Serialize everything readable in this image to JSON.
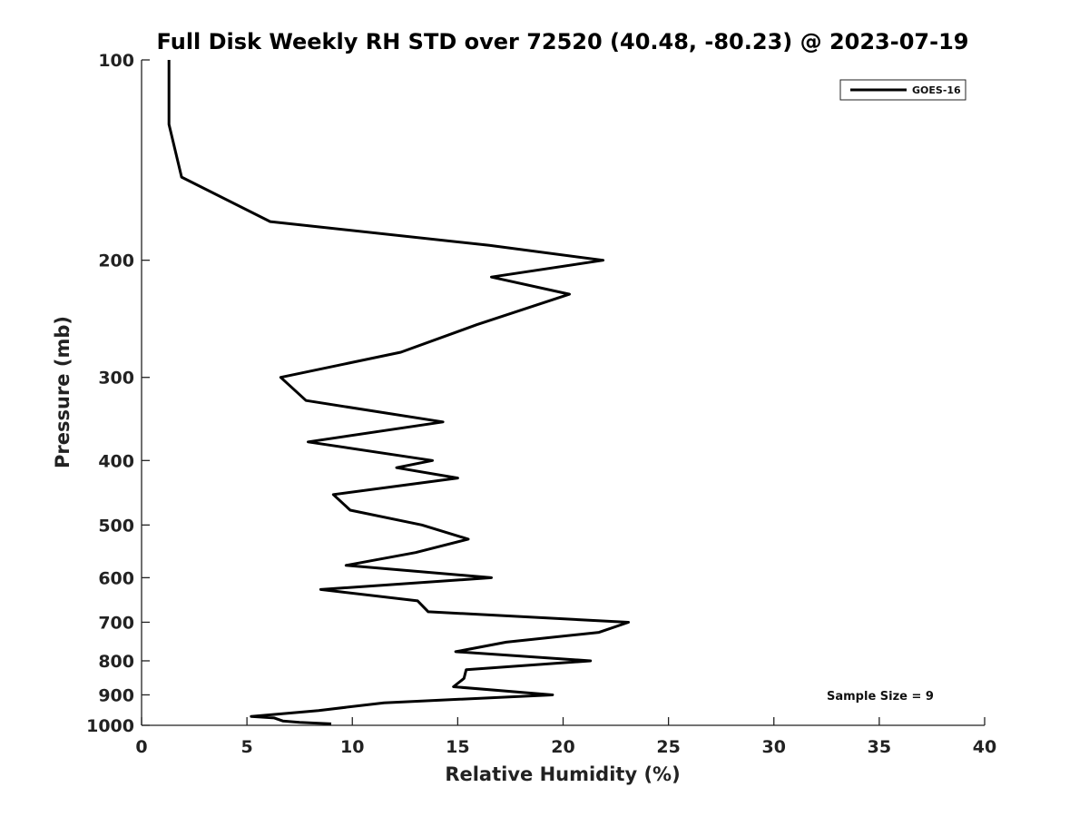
{
  "chart_data": {
    "type": "line",
    "title": "Full Disk Weekly RH STD over 72520 (40.48, -80.23) @ 2023-07-19",
    "xlabel": "Relative Humidity (%)",
    "ylabel": "Pressure (mb)",
    "xlim": [
      0,
      40
    ],
    "ylim": [
      100,
      1000
    ],
    "y_scale": "log",
    "y_inverted": true,
    "x_ticks": [
      0,
      5,
      10,
      15,
      20,
      25,
      30,
      35,
      40
    ],
    "y_ticks": [
      100,
      200,
      300,
      400,
      500,
      600,
      700,
      800,
      900,
      1000
    ],
    "grid": false,
    "legend": {
      "placement": "top-right",
      "entries": [
        "GOES-16"
      ]
    },
    "annotation": "Sample Size = 9",
    "series": [
      {
        "name": "GOES-16",
        "color": "#000000",
        "x": [
          1.3,
          1.3,
          1.9,
          6.1,
          16.5,
          21.9,
          16.6,
          20.3,
          15.9,
          12.3,
          6.6,
          7.8,
          14.3,
          7.9,
          13.8,
          12.1,
          15.0,
          9.1,
          9.9,
          13.3,
          15.5,
          13.0,
          9.7,
          16.6,
          8.5,
          13.1,
          13.6,
          23.1,
          21.7,
          17.3,
          14.9,
          21.3,
          15.4,
          15.3,
          14.8,
          19.5,
          11.5,
          8.4,
          5.2,
          6.3,
          6.7,
          7.5,
          9.0
        ],
        "y": [
          100,
          125,
          150,
          175,
          190,
          200,
          212,
          225,
          250,
          275,
          300,
          325,
          350,
          375,
          400,
          410,
          425,
          450,
          475,
          500,
          525,
          550,
          575,
          600,
          625,
          650,
          675,
          700,
          725,
          750,
          775,
          800,
          825,
          850,
          875,
          900,
          925,
          950,
          970,
          975,
          985,
          990,
          995
        ]
      }
    ]
  }
}
